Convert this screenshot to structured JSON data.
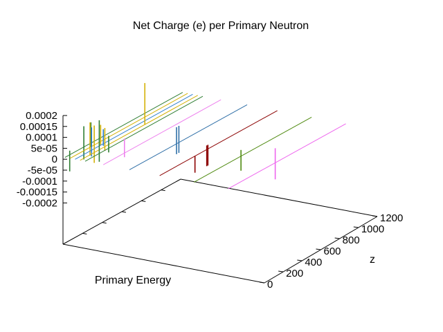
{
  "chart_data": {
    "type": "line",
    "title": "Net Charge (e) per Primary Neutron",
    "xlabel": "Primary Energy",
    "ylabel": "",
    "zlabel": "z",
    "zlim": [
      0,
      1200
    ],
    "vlim": [
      -0.0002,
      0.0002
    ],
    "z_ticks": [
      "0",
      "200",
      "400",
      "600",
      "800",
      "1000",
      "1200"
    ],
    "value_ticks": [
      "0.0002",
      "0.00015",
      "0.0001",
      "5e-05",
      "0",
      "-5e-05",
      "-0.0001",
      "-0.00015",
      "-0.0002"
    ],
    "grid": false,
    "series": [
      {
        "color": "#2e7d32",
        "x": 0.01,
        "spikes": [
          {
            "u": 0.04,
            "lo": -8e-05,
            "hi": 2e-05
          },
          {
            "u": 0.16,
            "lo": -6e-05,
            "hi": 0.0001
          },
          {
            "u": 0.22,
            "lo": -2e-05,
            "hi": 0.0001
          }
        ]
      },
      {
        "color": "#d4b106",
        "x": 0.035,
        "spikes": [
          {
            "u": 0.17,
            "lo": -4e-05,
            "hi": 0.00012
          },
          {
            "u": 0.26,
            "lo": -2e-05,
            "hi": 8e-05
          }
        ]
      },
      {
        "color": "#2f7fd0",
        "x": 0.06,
        "spikes": [
          {
            "u": 0.14,
            "lo": -3e-05,
            "hi": 0.00011
          },
          {
            "u": 0.24,
            "lo": -1e-05,
            "hi": 7e-05
          }
        ]
      },
      {
        "color": "#d4b106",
        "x": 0.085,
        "spikes": [
          {
            "u": 0.12,
            "lo": -5e-05,
            "hi": 0.00013
          },
          {
            "u": 0.21,
            "lo": -2e-05,
            "hi": 9e-05
          },
          {
            "u": 0.55,
            "lo": 0.0,
            "hi": 0.0002
          }
        ]
      },
      {
        "color": "#2e7d32",
        "x": 0.11,
        "spikes": [
          {
            "u": 0.12,
            "lo": -4e-05,
            "hi": 0.00016
          },
          {
            "u": 0.2,
            "lo": -2e-05,
            "hi": 6e-05
          }
        ]
      },
      {
        "color": "#ee82ee",
        "x": 0.2,
        "spikes": [
          {
            "u": 0.18,
            "lo": -2e-05,
            "hi": 7e-05
          }
        ]
      },
      {
        "color": "#2f6fa7",
        "x": 0.33,
        "spikes": [
          {
            "u": 0.4,
            "lo": -5e-05,
            "hi": 8e-05
          },
          {
            "u": 0.42,
            "lo": -5e-05,
            "hi": 8e-05
          }
        ]
      },
      {
        "color": "#8b0000",
        "x": 0.48,
        "spikes": [
          {
            "u": 0.3,
            "lo": -8e-05,
            "hi": 0.0
          },
          {
            "u": 0.4,
            "lo": -8e-05,
            "hi": 2e-05
          },
          {
            "u": 0.41,
            "lo": -8e-05,
            "hi": 2e-05
          }
        ]
      },
      {
        "color": "#4f8a10",
        "x": 0.65,
        "spikes": [
          {
            "u": 0.4,
            "lo": -7e-05,
            "hi": 3e-05
          }
        ]
      },
      {
        "color": "#ee66ee",
        "x": 0.82,
        "spikes": [
          {
            "u": 0.4,
            "lo": -8e-05,
            "hi": 7e-05
          }
        ]
      }
    ]
  }
}
